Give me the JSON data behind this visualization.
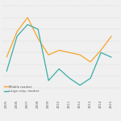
{
  "years": [
    2005,
    2006,
    2007,
    2008,
    2009,
    2010,
    2011,
    2012,
    2013,
    2014,
    2015
  ],
  "middle_market": [
    2.8,
    3.9,
    4.5,
    3.6,
    2.9,
    3.1,
    3.0,
    2.9,
    2.6,
    3.1,
    3.7
  ],
  "large_corp_market": [
    2.2,
    3.7,
    4.2,
    4.0,
    1.8,
    2.3,
    1.9,
    1.6,
    1.9,
    3.0,
    2.8
  ],
  "middle_market_color": "#f5a52a",
  "large_corp_market_color": "#3aada8",
  "legend_labels": [
    "Middle market",
    "Large corp. market"
  ],
  "background_color": "#f0f0f0",
  "grid_color": "#d0d0d0",
  "ylim": [
    1.0,
    5.2
  ],
  "xlim": [
    2004.6,
    2015.8
  ],
  "linewidth": 0.9
}
